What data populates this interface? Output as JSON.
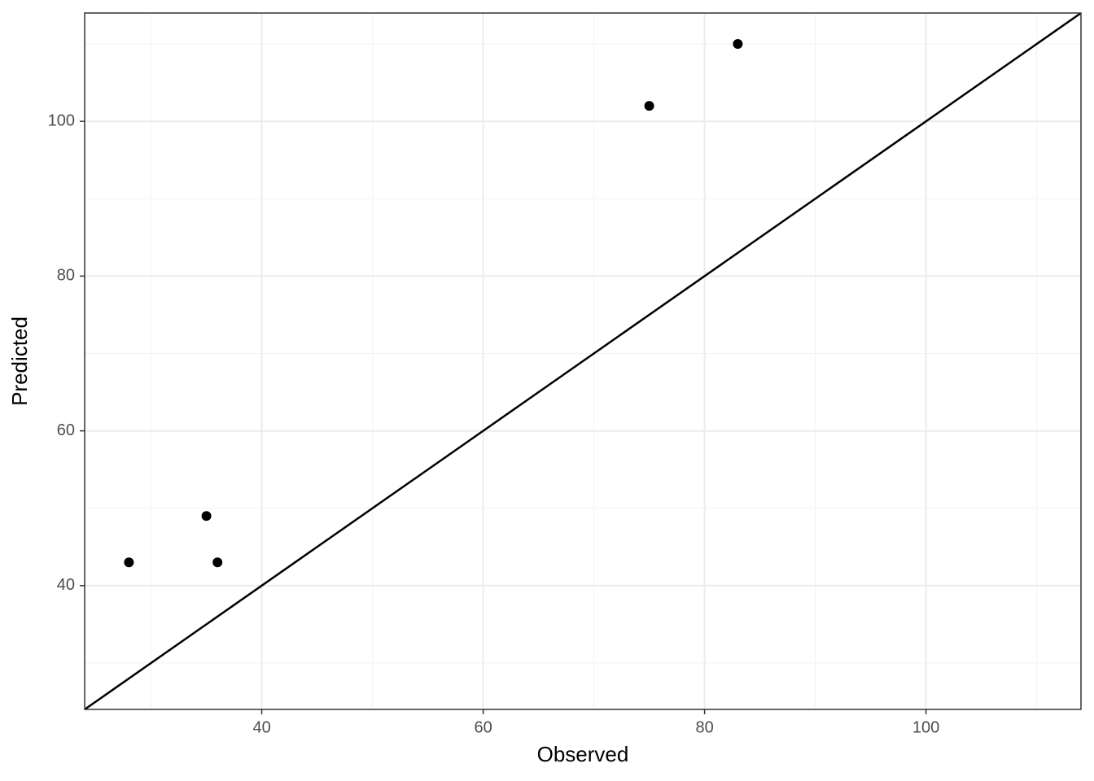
{
  "chart_data": {
    "type": "scatter",
    "x_label": "Observed",
    "y_label": "Predicted",
    "x": [
      28,
      35,
      36,
      75,
      83
    ],
    "values": [
      43,
      49,
      43,
      102,
      110
    ],
    "color": "#000000",
    "xlim": [
      24,
      114
    ],
    "ylim": [
      24,
      114
    ],
    "xticks": [
      40,
      60,
      80,
      100
    ],
    "yticks": [
      40,
      60,
      80,
      100
    ],
    "x_minor_ticks": [
      30,
      50,
      70,
      90,
      110
    ],
    "y_minor_ticks": [
      30,
      50,
      70,
      90,
      110
    ],
    "grid": true,
    "reference_line": {
      "slope": 1,
      "intercept": 0,
      "color": "#000000"
    }
  }
}
